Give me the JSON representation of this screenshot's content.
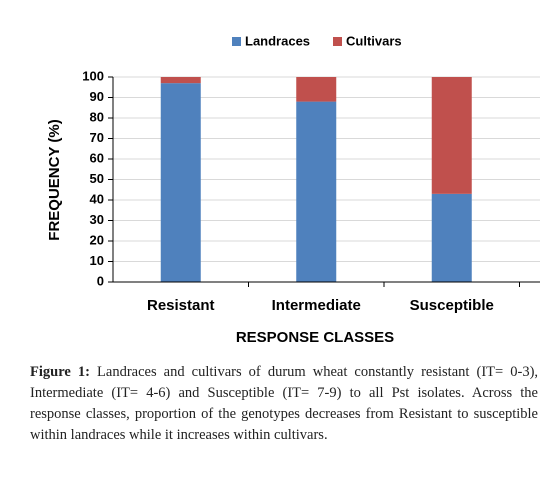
{
  "chart_data": {
    "type": "stacked-bar",
    "categories": [
      "Resistant",
      "Intermediate",
      "Susceptible"
    ],
    "series": [
      {
        "name": "Landraces",
        "color": "#4f81bd",
        "values": [
          97,
          88,
          43
        ]
      },
      {
        "name": "Cultivars",
        "color": "#c0504d",
        "values": [
          3,
          12,
          57
        ]
      }
    ],
    "ylim": [
      0,
      100
    ],
    "yticks": [
      0,
      10,
      20,
      30,
      40,
      50,
      60,
      70,
      80,
      90,
      100
    ],
    "ylabel": "FREQUENCY (%)",
    "xlabel": "RESPONSE CLASSES",
    "grid": true,
    "legend": "top"
  },
  "caption": {
    "label": "Figure 1:",
    "text": "Landraces and cultivars of durum wheat constantly resistant (IT= 0-3), Intermediate (IT= 4-6) and Susceptible (IT= 7-9) to all Pst isolates. Across the response classes, proportion of the genotypes decreases from Resistant to susceptible within landraces while it increases within cultivars."
  }
}
